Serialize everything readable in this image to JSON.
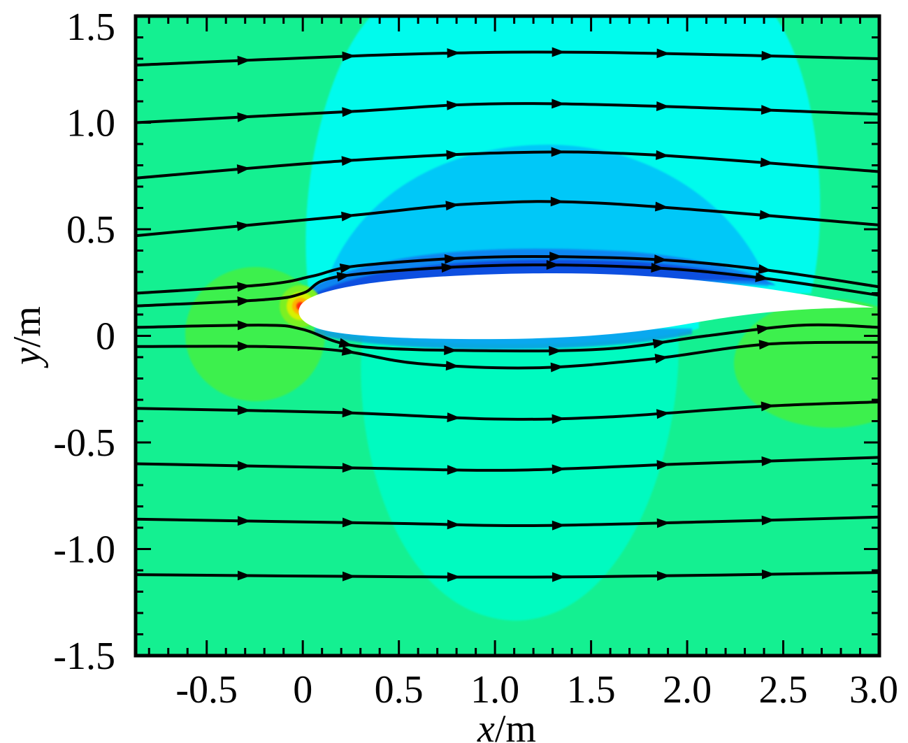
{
  "chart_data": {
    "type": "contour-streamline",
    "xlabel_var": "x",
    "xlabel_unit": "/m",
    "ylabel_var": "y",
    "ylabel_unit": "/m",
    "xlim": [
      -0.87,
      3.0
    ],
    "ylim": [
      -1.5,
      1.5
    ],
    "xticks": [
      -0.5,
      0,
      0.5,
      1.0,
      1.5,
      2.0,
      2.5,
      3.0
    ],
    "xtick_labels": [
      "-0.5",
      "0",
      "0.5",
      "1.0",
      "1.5",
      "2.0",
      "2.5",
      "3.0"
    ],
    "yticks": [
      1.5,
      1.0,
      0.5,
      0,
      -0.5,
      -1.0,
      -1.5
    ],
    "ytick_labels": [
      "1.5",
      "1.0",
      "0.5",
      "0",
      "-0.5",
      "-1.0",
      "-1.5"
    ],
    "colors": {
      "background_green": "#14f091",
      "light_green": "#3cf04e",
      "cyan_green": "#00fbc0",
      "cyan": "#00fbed",
      "sky_blue": "#00c8f8",
      "blue": "#0a86f0",
      "deep_blue": "#0c4fe0",
      "airfoil": "#ffffff",
      "stagnation": "#ff2a10"
    },
    "streamlines": [
      {
        "points": [
          [
            -0.87,
            1.27
          ],
          [
            0.5,
            1.32
          ],
          [
            1.5,
            1.33
          ],
          [
            3.0,
            1.3
          ]
        ]
      },
      {
        "points": [
          [
            -0.87,
            1.0
          ],
          [
            0.2,
            1.05
          ],
          [
            1.2,
            1.09
          ],
          [
            3.0,
            1.04
          ]
        ]
      },
      {
        "points": [
          [
            -0.87,
            0.74
          ],
          [
            0.2,
            0.82
          ],
          [
            1.1,
            0.86
          ],
          [
            1.8,
            0.85
          ],
          [
            3.0,
            0.77
          ]
        ]
      },
      {
        "points": [
          [
            -0.87,
            0.47
          ],
          [
            0.2,
            0.56
          ],
          [
            0.9,
            0.62
          ],
          [
            1.6,
            0.62
          ],
          [
            3.0,
            0.52
          ]
        ]
      },
      {
        "points": [
          [
            -0.87,
            0.2
          ],
          [
            -0.2,
            0.24
          ],
          [
            0.05,
            0.28
          ],
          [
            0.3,
            0.33
          ],
          [
            1.0,
            0.37
          ],
          [
            1.8,
            0.36
          ],
          [
            2.4,
            0.31
          ],
          [
            3.0,
            0.23
          ]
        ]
      },
      {
        "points": [
          [
            -0.87,
            0.14
          ],
          [
            -0.2,
            0.17
          ],
          [
            0.0,
            0.2
          ],
          [
            0.2,
            0.28
          ],
          [
            1.0,
            0.33
          ],
          [
            1.8,
            0.32
          ],
          [
            2.4,
            0.27
          ],
          [
            3.0,
            0.19
          ]
        ]
      },
      {
        "points": [
          [
            -0.87,
            0.04
          ],
          [
            -0.2,
            0.05
          ],
          [
            0.0,
            0.03
          ],
          [
            0.3,
            -0.05
          ],
          [
            1.0,
            -0.07
          ],
          [
            1.6,
            -0.06
          ],
          [
            2.1,
            0.0
          ],
          [
            2.6,
            0.05
          ],
          [
            3.0,
            0.04
          ]
        ]
      },
      {
        "points": [
          [
            -0.87,
            -0.05
          ],
          [
            -0.2,
            -0.05
          ],
          [
            0.2,
            -0.07
          ],
          [
            0.6,
            -0.13
          ],
          [
            1.2,
            -0.15
          ],
          [
            1.8,
            -0.11
          ],
          [
            2.4,
            -0.04
          ],
          [
            3.0,
            -0.03
          ]
        ]
      },
      {
        "points": [
          [
            -0.87,
            -0.34
          ],
          [
            0.2,
            -0.36
          ],
          [
            1.0,
            -0.39
          ],
          [
            1.6,
            -0.38
          ],
          [
            2.4,
            -0.33
          ],
          [
            3.0,
            -0.31
          ]
        ]
      },
      {
        "points": [
          [
            -0.87,
            -0.6
          ],
          [
            0.3,
            -0.62
          ],
          [
            1.1,
            -0.63
          ],
          [
            2.0,
            -0.6
          ],
          [
            3.0,
            -0.57
          ]
        ]
      },
      {
        "points": [
          [
            -0.87,
            -0.86
          ],
          [
            0.5,
            -0.88
          ],
          [
            1.2,
            -0.89
          ],
          [
            2.2,
            -0.87
          ],
          [
            3.0,
            -0.85
          ]
        ]
      },
      {
        "points": [
          [
            -0.87,
            -1.12
          ],
          [
            0.5,
            -1.13
          ],
          [
            1.5,
            -1.13
          ],
          [
            3.0,
            -1.11
          ]
        ]
      }
    ]
  }
}
